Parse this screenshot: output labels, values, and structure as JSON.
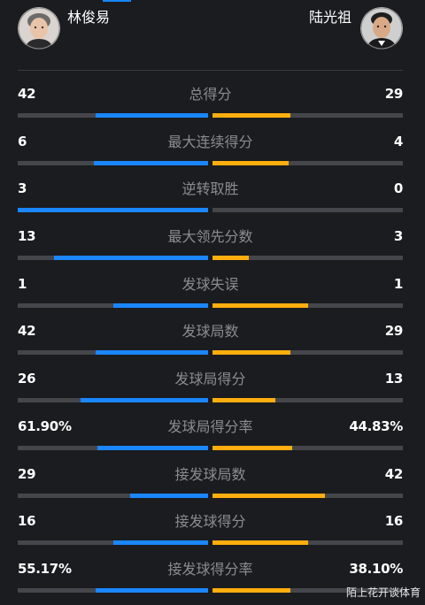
{
  "header": {
    "left_player": {
      "name": "林俊易",
      "avatar_icon": "player-avatar-icon"
    },
    "right_player": {
      "name": "陆光祖",
      "avatar_icon": "player-avatar-icon"
    }
  },
  "colors": {
    "left": "#1a86ff",
    "right": "#ffae0e",
    "track": "#45464b"
  },
  "stats": [
    {
      "label": "总得分",
      "left": "42",
      "right": "29",
      "left_fill": 0.59,
      "right_fill": 0.41
    },
    {
      "label": "最大连续得分",
      "left": "6",
      "right": "4",
      "left_fill": 0.6,
      "right_fill": 0.4
    },
    {
      "label": "逆转取胜",
      "left": "3",
      "right": "0",
      "left_fill": 1.0,
      "right_fill": 0.0
    },
    {
      "label": "最大领先分数",
      "left": "13",
      "right": "3",
      "left_fill": 0.81,
      "right_fill": 0.19
    },
    {
      "label": "发球失误",
      "left": "1",
      "right": "1",
      "left_fill": 0.5,
      "right_fill": 0.5
    },
    {
      "label": "发球局数",
      "left": "42",
      "right": "29",
      "left_fill": 0.59,
      "right_fill": 0.41
    },
    {
      "label": "发球局得分",
      "left": "26",
      "right": "13",
      "left_fill": 0.67,
      "right_fill": 0.33
    },
    {
      "label": "发球局得分率",
      "left": "61.90%",
      "right": "44.83%",
      "left_fill": 0.58,
      "right_fill": 0.42
    },
    {
      "label": "接发球局数",
      "left": "29",
      "right": "42",
      "left_fill": 0.41,
      "right_fill": 0.59
    },
    {
      "label": "接发球得分",
      "left": "16",
      "right": "16",
      "left_fill": 0.5,
      "right_fill": 0.5
    },
    {
      "label": "接发球得分率",
      "left": "55.17%",
      "right": "38.10%",
      "left_fill": 0.59,
      "right_fill": 0.41
    }
  ],
  "watermark": "陌上花开谈体育"
}
